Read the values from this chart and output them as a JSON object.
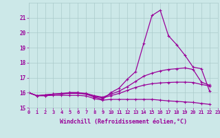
{
  "lines": [
    {
      "x": [
        0,
        1,
        2,
        3,
        4,
        5,
        6,
        7,
        8,
        9,
        10,
        11,
        12,
        13,
        14,
        15,
        16,
        17,
        18,
        19,
        20,
        21,
        22,
        23
      ],
      "y": [
        16.0,
        15.8,
        15.8,
        15.9,
        15.9,
        16.0,
        16.0,
        15.9,
        15.7,
        15.55,
        16.0,
        16.3,
        16.9,
        17.4,
        19.3,
        21.15,
        21.5,
        19.8,
        19.2,
        18.5,
        17.7,
        17.6,
        16.1,
        null
      ]
    },
    {
      "x": [
        0,
        1,
        2,
        3,
        4,
        5,
        6,
        7,
        8,
        9,
        10,
        11,
        12,
        13,
        14,
        15,
        16,
        17,
        18,
        19,
        20,
        21,
        22,
        23
      ],
      "y": [
        16.0,
        15.8,
        15.85,
        15.9,
        15.95,
        16.0,
        16.0,
        15.95,
        15.8,
        15.7,
        15.9,
        16.1,
        16.4,
        16.75,
        17.1,
        17.3,
        17.45,
        17.55,
        17.6,
        17.65,
        17.55,
        16.7,
        16.5,
        null
      ]
    },
    {
      "x": [
        0,
        1,
        2,
        3,
        4,
        5,
        6,
        7,
        8,
        9,
        10,
        11,
        12,
        13,
        14,
        15,
        16,
        17,
        18,
        19,
        20,
        21,
        22,
        23
      ],
      "y": [
        16.0,
        15.8,
        15.85,
        15.9,
        15.92,
        15.95,
        15.95,
        15.9,
        15.75,
        15.65,
        15.8,
        15.95,
        16.15,
        16.35,
        16.5,
        16.6,
        16.65,
        16.68,
        16.7,
        16.7,
        16.68,
        16.55,
        16.45,
        null
      ]
    },
    {
      "x": [
        0,
        1,
        2,
        3,
        4,
        5,
        6,
        7,
        8,
        9,
        10,
        11,
        12,
        13,
        14,
        15,
        16,
        17,
        18,
        19,
        20,
        21,
        22,
        23
      ],
      "y": [
        16.0,
        15.8,
        15.8,
        15.82,
        15.82,
        15.82,
        15.82,
        15.78,
        15.6,
        15.5,
        15.55,
        15.55,
        15.55,
        15.55,
        15.55,
        15.55,
        15.5,
        15.45,
        15.42,
        15.38,
        15.35,
        15.28,
        15.22,
        null
      ]
    }
  ],
  "xlabel": "Windchill (Refroidissement éolien,°C)",
  "xlim": [
    0,
    23
  ],
  "ylim": [
    15,
    22
  ],
  "xticks": [
    0,
    1,
    2,
    3,
    4,
    5,
    6,
    7,
    8,
    9,
    10,
    11,
    12,
    13,
    14,
    15,
    16,
    17,
    18,
    19,
    20,
    21,
    22,
    23
  ],
  "yticks": [
    15,
    16,
    17,
    18,
    19,
    20,
    21
  ],
  "bg_color": "#cce8e8",
  "grid_color": "#aacaca",
  "line_color": "#990099",
  "marker": "+",
  "markersize": 3,
  "linewidth": 0.9
}
